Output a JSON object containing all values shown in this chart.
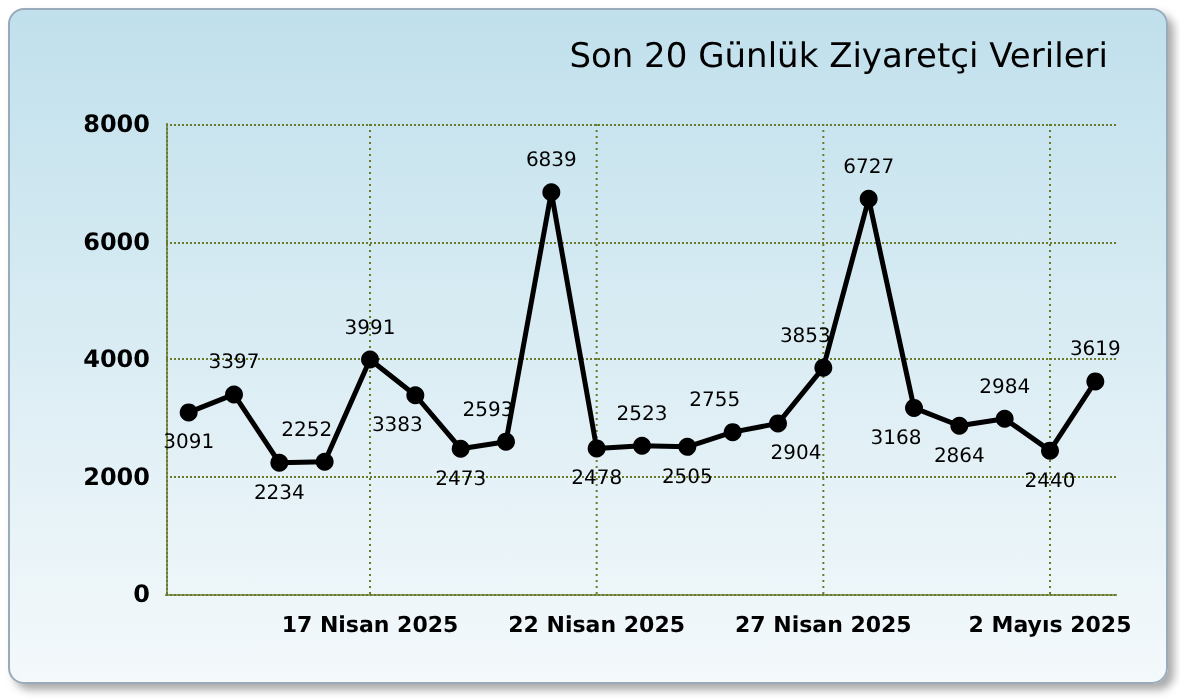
{
  "chart_data": {
    "type": "line",
    "title": "Son 20 Günlük Ziyaretçi Verileri",
    "categories": [
      null,
      null,
      null,
      null,
      "17 Nisan 2025",
      null,
      null,
      null,
      null,
      "22 Nisan 2025",
      null,
      null,
      null,
      null,
      "27 Nisan 2025",
      null,
      null,
      null,
      null,
      "2 Mayıs 2025",
      null
    ],
    "series": [
      {
        "color": "#000000",
        "values": [
          3091,
          3397,
          2234,
          2252,
          3991,
          3383,
          2473,
          2593,
          6839,
          2478,
          2523,
          2505,
          2755,
          2904,
          3853,
          6727,
          3168,
          2864,
          2984,
          2440,
          3619
        ]
      }
    ],
    "ylim": [
      0,
      8000
    ],
    "yticks": [
      0,
      2000,
      4000,
      6000,
      8000
    ],
    "grid": true,
    "marker": "circle",
    "line_style": "solid",
    "data_labels": true
  }
}
